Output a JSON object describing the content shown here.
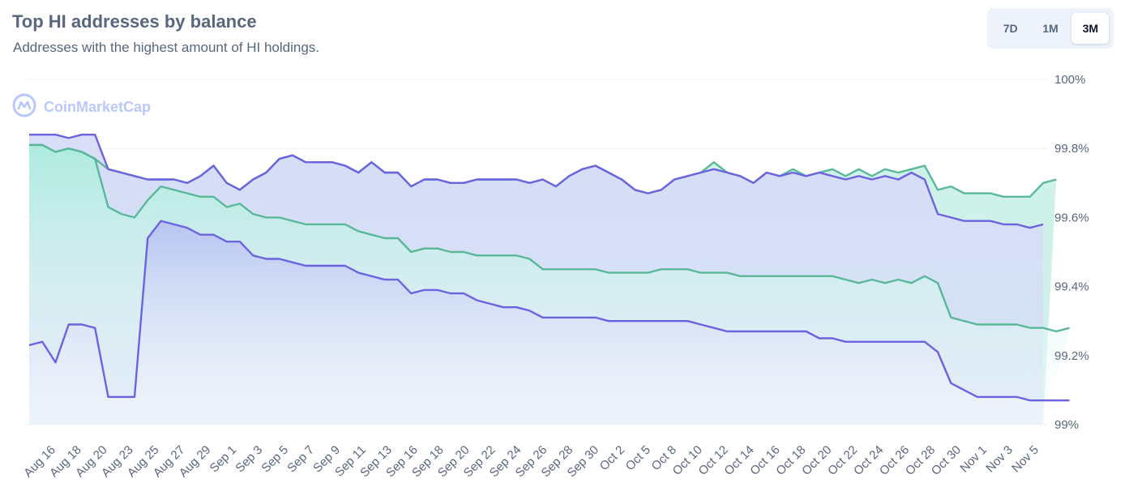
{
  "header": {
    "title": "Top HI addresses by balance",
    "subtitle": "Addresses with the highest amount of HI holdings."
  },
  "range_buttons": [
    {
      "label": "7D",
      "active": false
    },
    {
      "label": "1M",
      "active": false
    },
    {
      "label": "3M",
      "active": true
    }
  ],
  "watermark": {
    "text": "CoinMarketCap",
    "icon": "coinmarketcap-logo-icon"
  },
  "colors": {
    "purple": "#6c63e0",
    "teal": "#5ab89a",
    "purple_fill": "#c7cdf6",
    "teal_fill": "#c4f0e6",
    "grid": "#eef0f4",
    "text": "#58667e"
  },
  "chart_data": {
    "type": "area",
    "title": "Top HI addresses by balance",
    "y_axis": {
      "min": 99.0,
      "max": 100.0,
      "ticks": [
        99.0,
        99.2,
        99.4,
        99.6,
        99.8,
        100.0
      ],
      "tick_labels": [
        "99%",
        "99.2%",
        "99.4%",
        "99.6%",
        "99.8%",
        "100%"
      ],
      "position": "right"
    },
    "x_tick_labels": [
      "Aug 16",
      "Aug 18",
      "Aug 20",
      "Aug 23",
      "Aug 25",
      "Aug 27",
      "Aug 29",
      "Sep 1",
      "Sep 3",
      "Sep 5",
      "Sep 7",
      "Sep 9",
      "Sep 11",
      "Sep 13",
      "Sep 16",
      "Sep 18",
      "Sep 20",
      "Sep 22",
      "Sep 24",
      "Sep 26",
      "Sep 28",
      "Sep 30",
      "Oct 2",
      "Oct 5",
      "Oct 8",
      "Oct 10",
      "Oct 12",
      "Oct 14",
      "Oct 16",
      "Oct 18",
      "Oct 20",
      "Oct 22",
      "Oct 24",
      "Oct 26",
      "Oct 28",
      "Oct 30",
      "Nov 1",
      "Nov 3",
      "Nov 5"
    ],
    "grid": true,
    "legend": "none",
    "series": [
      {
        "color": "purple",
        "values": [
          99.84,
          99.84,
          99.84,
          99.83,
          99.84,
          99.84,
          99.74,
          99.73,
          99.72,
          99.71,
          99.71,
          99.71,
          99.7,
          99.72,
          99.75,
          99.7,
          99.68,
          99.71,
          99.73,
          99.77,
          99.78,
          99.76,
          99.76,
          99.76,
          99.75,
          99.73,
          99.76,
          99.73,
          99.73,
          99.69,
          99.71,
          99.71,
          99.7,
          99.7,
          99.71,
          99.71,
          99.71,
          99.71,
          99.7,
          99.71,
          99.69,
          99.72,
          99.74,
          99.75,
          99.73,
          99.71,
          99.68,
          99.67,
          99.68,
          99.71,
          99.72,
          99.73,
          99.74,
          99.73,
          99.72,
          99.7,
          99.73,
          99.72,
          99.73,
          99.72,
          99.73,
          99.72,
          99.71,
          99.72,
          99.71,
          99.72,
          99.71,
          99.73,
          99.71,
          99.61,
          99.6,
          99.59,
          99.59,
          99.59,
          99.58,
          99.58,
          99.57,
          99.58
        ]
      },
      {
        "color": "teal",
        "values": [
          99.81,
          99.81,
          99.79,
          99.8,
          99.79,
          99.77,
          99.63,
          99.61,
          99.6,
          99.65,
          99.69,
          99.68,
          99.67,
          99.66,
          99.66,
          99.63,
          99.64,
          99.61,
          99.6,
          99.6,
          99.59,
          99.58,
          99.58,
          99.58,
          99.58,
          99.56,
          99.55,
          99.54,
          99.54,
          99.5,
          99.51,
          99.51,
          99.5,
          99.5,
          99.49,
          99.49,
          99.49,
          99.49,
          99.48,
          99.45,
          99.45,
          99.45,
          99.45,
          99.45,
          99.44,
          99.44,
          99.44,
          99.44,
          99.45,
          99.45,
          99.45,
          99.44,
          99.44,
          99.44,
          99.43,
          99.43,
          99.43,
          99.43,
          99.43,
          99.43,
          99.43,
          99.43,
          99.42,
          99.41,
          99.42,
          99.41,
          99.42,
          99.41,
          99.43,
          99.41,
          99.31,
          99.3,
          99.29,
          99.29,
          99.29,
          99.29,
          99.28,
          99.28,
          99.27,
          99.28
        ]
      },
      {
        "color": "purple",
        "values": [
          99.23,
          99.24,
          99.18,
          99.29,
          99.29,
          99.28,
          99.08,
          99.08,
          99.08,
          99.54,
          99.59,
          99.58,
          99.57,
          99.55,
          99.55,
          99.53,
          99.53,
          99.49,
          99.48,
          99.48,
          99.47,
          99.46,
          99.46,
          99.46,
          99.46,
          99.44,
          99.43,
          99.42,
          99.42,
          99.38,
          99.39,
          99.39,
          99.38,
          99.38,
          99.36,
          99.35,
          99.34,
          99.34,
          99.33,
          99.31,
          99.31,
          99.31,
          99.31,
          99.31,
          99.3,
          99.3,
          99.3,
          99.3,
          99.3,
          99.3,
          99.3,
          99.29,
          99.28,
          99.27,
          99.27,
          99.27,
          99.27,
          99.27,
          99.27,
          99.27,
          99.25,
          99.25,
          99.24,
          99.24,
          99.24,
          99.24,
          99.24,
          99.24,
          99.24,
          99.21,
          99.12,
          99.1,
          99.08,
          99.08,
          99.08,
          99.08,
          99.07,
          99.07,
          99.07,
          99.07
        ]
      },
      {
        "color": "teal",
        "values": [
          99.81,
          99.81,
          99.79,
          99.8,
          99.79,
          99.77,
          99.74,
          99.73,
          99.72,
          99.71,
          99.71,
          99.71,
          99.7,
          99.72,
          99.75,
          99.7,
          99.68,
          99.71,
          99.73,
          99.77,
          99.78,
          99.76,
          99.76,
          99.76,
          99.75,
          99.73,
          99.76,
          99.73,
          99.73,
          99.69,
          99.71,
          99.71,
          99.7,
          99.7,
          99.71,
          99.71,
          99.71,
          99.71,
          99.7,
          99.71,
          99.69,
          99.72,
          99.74,
          99.75,
          99.73,
          99.71,
          99.68,
          99.67,
          99.68,
          99.71,
          99.72,
          99.73,
          99.76,
          99.73,
          99.72,
          99.7,
          99.73,
          99.72,
          99.74,
          99.72,
          99.73,
          99.74,
          99.72,
          99.74,
          99.72,
          99.74,
          99.73,
          99.74,
          99.75,
          99.68,
          99.69,
          99.67,
          99.67,
          99.67,
          99.66,
          99.66,
          99.66,
          99.7,
          99.71
        ]
      }
    ]
  }
}
